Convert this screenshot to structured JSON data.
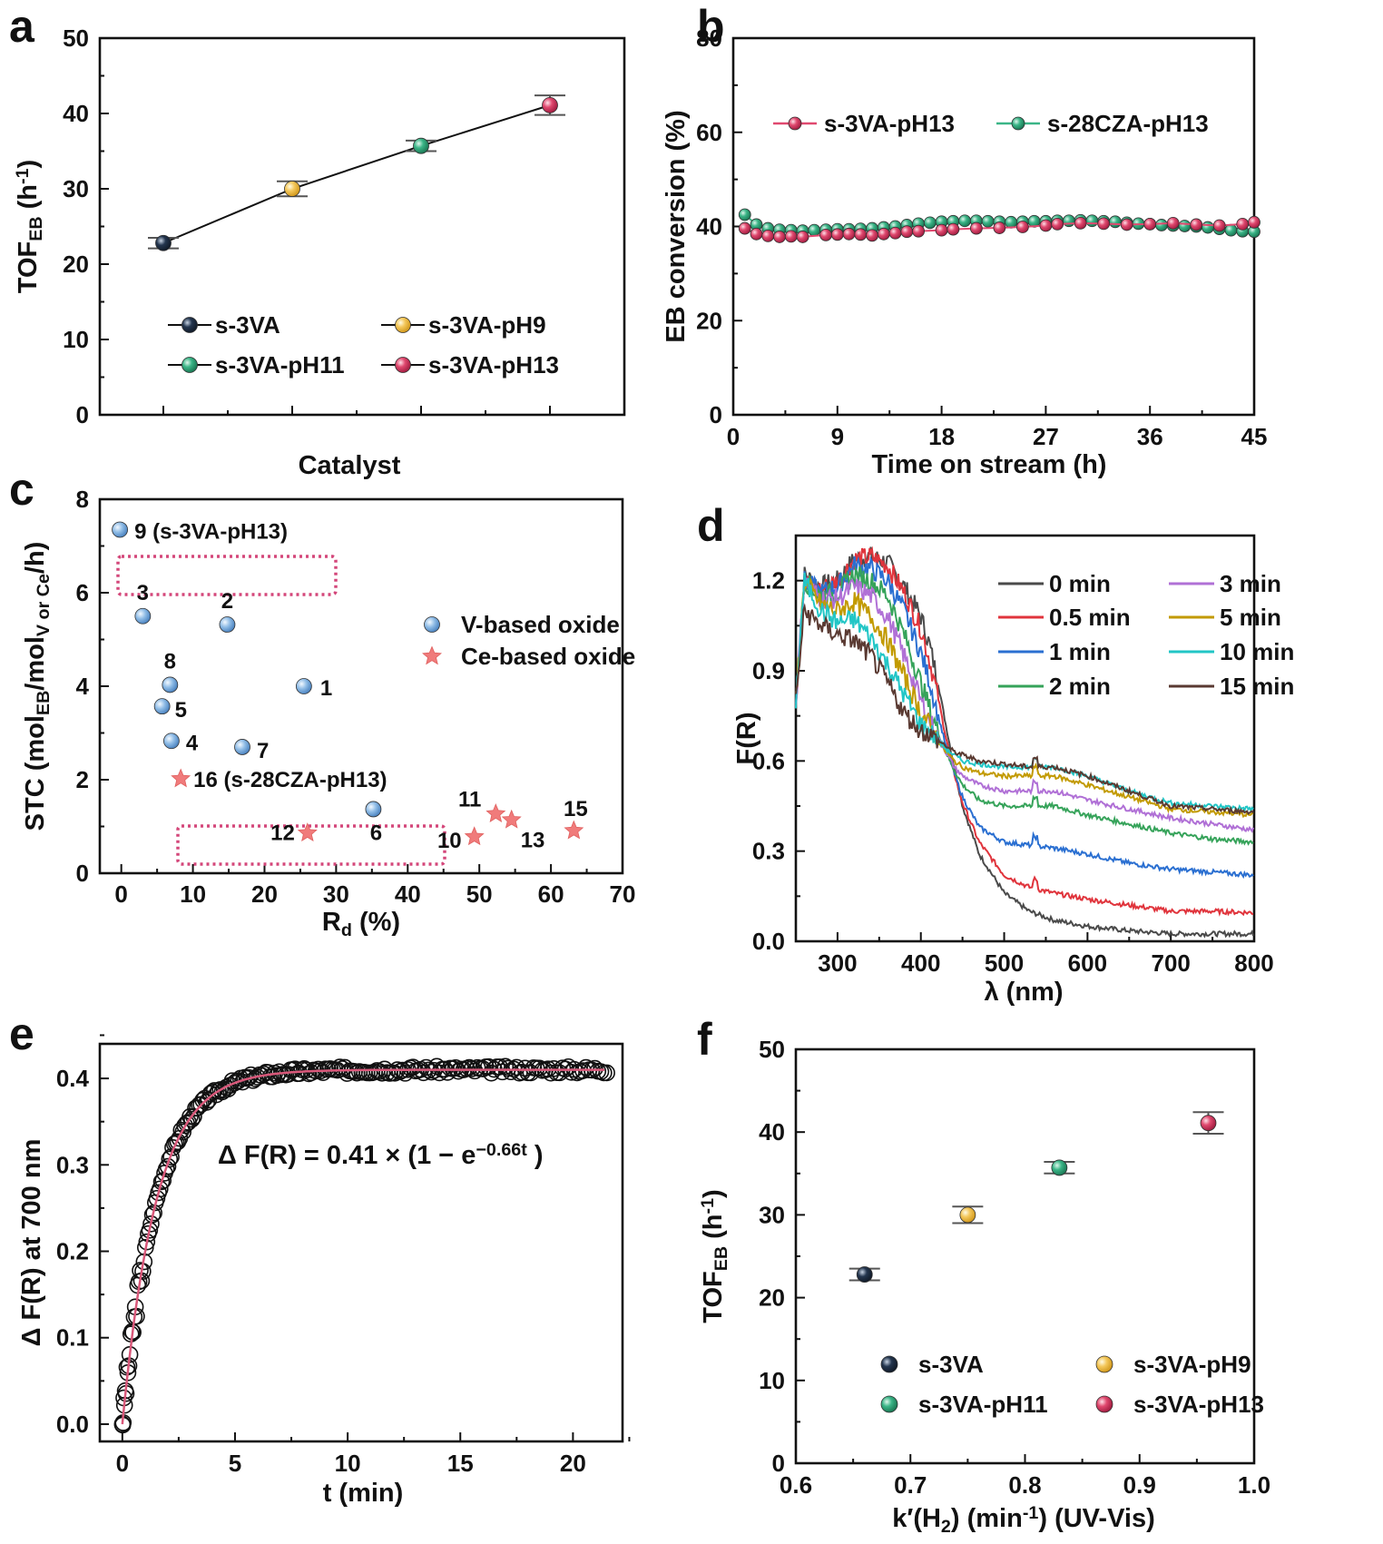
{
  "colors": {
    "s-3VA": "#24364f",
    "s-3VA-pH9": "#f4c85c",
    "s-3VA-pH11": "#3bb587",
    "s-3VA-pH13": "#e0496f",
    "v_based": "#8fbce6",
    "ce_based": "#f07b7b",
    "highlight_box": "#d4477a",
    "fit_line": "#d9587a"
  },
  "chart_data": [
    {
      "panel": "a",
      "type": "line",
      "xlabel": "Catalyst",
      "ylabel": "TOF",
      "ylabel_sub": "EB",
      "ylabel_unit": " (h",
      "ylabel_sup": "-1",
      "ylabel_close": ")",
      "ylim": [
        0,
        50
      ],
      "yticks": [
        0,
        10,
        20,
        30,
        40,
        50
      ],
      "categories": [
        "s-3VA",
        "s-3VA-pH9",
        "s-3VA-pH11",
        "s-3VA-pH13"
      ],
      "values": [
        22.8,
        30.0,
        35.7,
        41.1
      ],
      "errors": [
        0.7,
        1.0,
        0.7,
        1.3
      ],
      "legend": [
        "s-3VA",
        "s-3VA-pH9",
        "s-3VA-pH11",
        "s-3VA-pH13"
      ]
    },
    {
      "panel": "b",
      "type": "line",
      "xlabel": "Time on stream (h)",
      "ylabel": "EB conversion (%)",
      "xlim": [
        0,
        45
      ],
      "ylim": [
        0,
        80
      ],
      "xticks": [
        0,
        9,
        18,
        27,
        36,
        45
      ],
      "yticks": [
        0,
        20,
        40,
        60,
        80
      ],
      "series": [
        {
          "name": "s-3VA-pH13",
          "x": [
            1,
            2,
            3,
            4,
            5,
            6,
            8,
            9,
            10,
            11,
            12,
            13,
            14,
            15,
            16,
            18,
            19,
            21,
            23,
            25,
            27,
            28,
            30,
            32,
            34,
            36,
            38,
            40,
            42,
            44,
            45
          ],
          "y": [
            39.6,
            38.4,
            38.0,
            37.8,
            37.9,
            37.8,
            38.2,
            38.3,
            38.4,
            38.3,
            38.1,
            38.4,
            38.6,
            38.9,
            39.0,
            39.2,
            39.4,
            39.6,
            39.7,
            39.9,
            40.2,
            40.5,
            40.7,
            40.6,
            40.4,
            40.5,
            40.7,
            40.4,
            40.2,
            40.5,
            40.9
          ]
        },
        {
          "name": "s-28CZA-pH13",
          "x": [
            1,
            2,
            3,
            4,
            5,
            6,
            7,
            8,
            9,
            10,
            11,
            12,
            13,
            14,
            15,
            16,
            17,
            18,
            19,
            20,
            21,
            22,
            23,
            24,
            25,
            26,
            27,
            28,
            29,
            30,
            31,
            32,
            33,
            34,
            35,
            36,
            37,
            38,
            39,
            40,
            41,
            42,
            43,
            44,
            45
          ],
          "y": [
            42.5,
            40.4,
            39.6,
            39.3,
            39.2,
            39.1,
            39.2,
            39.3,
            39.4,
            39.4,
            39.5,
            39.6,
            39.8,
            40.0,
            40.3,
            40.6,
            40.8,
            41.0,
            41.1,
            41.2,
            41.2,
            41.1,
            41.0,
            40.9,
            41.0,
            41.1,
            41.1,
            41.2,
            41.2,
            41.3,
            41.2,
            41.1,
            41.0,
            40.8,
            40.6,
            40.5,
            40.3,
            40.2,
            40.1,
            40.0,
            39.8,
            39.5,
            39.2,
            39.0,
            38.9
          ]
        }
      ]
    },
    {
      "panel": "c",
      "type": "scatter",
      "xlabel": "R",
      "xlabel_sub": "d",
      "xlabel_unit": " (%)",
      "ylabel": "STC (mol",
      "ylabel_sub1": "EB",
      "ylabel_mid": "/mol",
      "ylabel_sub2": "V or Ce",
      "ylabel_end": "/h)",
      "xlim": [
        -3,
        70
      ],
      "ylim": [
        0,
        8
      ],
      "xticks": [
        0,
        10,
        20,
        30,
        40,
        50,
        60,
        70
      ],
      "yticks": [
        0,
        2,
        4,
        6,
        8
      ],
      "legend": [
        "V-based oxide",
        "Ce-based oxide"
      ],
      "v_points": [
        {
          "label": "1",
          "x": 25.5,
          "y": 4.0
        },
        {
          "label": "2",
          "x": 14.8,
          "y": 5.32
        },
        {
          "label": "3",
          "x": 3.0,
          "y": 5.5
        },
        {
          "label": "4",
          "x": 7.0,
          "y": 2.83
        },
        {
          "label": "5",
          "x": 5.7,
          "y": 3.57
        },
        {
          "label": "6",
          "x": 35.2,
          "y": 1.37
        },
        {
          "label": "7",
          "x": 16.9,
          "y": 2.7
        },
        {
          "label": "8",
          "x": 6.8,
          "y": 4.03
        },
        {
          "label": "9 (s-3VA-pH13)",
          "x": -0.2,
          "y": 7.35
        }
      ],
      "ce_points": [
        {
          "label": "10",
          "x": 49.3,
          "y": 0.78
        },
        {
          "label": "11",
          "x": 52.3,
          "y": 1.27
        },
        {
          "label": "12",
          "x": 26.0,
          "y": 0.86
        },
        {
          "label": "13",
          "x": 54.5,
          "y": 1.14
        },
        {
          "label": "15",
          "x": 63.2,
          "y": 0.91
        },
        {
          "label": "16 (s-28CZA-pH13)",
          "x": 8.3,
          "y": 2.02
        }
      ]
    },
    {
      "panel": "d",
      "type": "line",
      "xlabel": "λ (nm)",
      "ylabel": "F(R)",
      "xlim": [
        250,
        800
      ],
      "ylim": [
        0,
        1.35
      ],
      "xticks": [
        300,
        400,
        500,
        600,
        700,
        800
      ],
      "yticks": [
        0.0,
        0.3,
        0.6,
        0.9,
        1.2
      ],
      "series": [
        {
          "name": "0 min",
          "color": "#4a4a4a",
          "x": [
            250,
            260,
            280,
            300,
            320,
            340,
            360,
            380,
            400,
            410,
            420,
            430,
            440,
            450,
            470,
            500,
            530,
            560,
            600,
            650,
            700,
            750,
            800
          ],
          "y": [
            0.8,
            1.22,
            1.18,
            1.2,
            1.27,
            1.28,
            1.26,
            1.18,
            1.08,
            0.99,
            0.87,
            0.72,
            0.58,
            0.45,
            0.29,
            0.16,
            0.1,
            0.07,
            0.05,
            0.035,
            0.025,
            0.025,
            0.025
          ]
        },
        {
          "name": "0.5 min",
          "color": "#e0343c",
          "x": [
            250,
            260,
            280,
            300,
            320,
            340,
            360,
            380,
            400,
            410,
            420,
            430,
            440,
            450,
            470,
            500,
            530,
            560,
            600,
            650,
            700,
            750,
            800
          ],
          "y": [
            0.8,
            1.2,
            1.17,
            1.2,
            1.27,
            1.28,
            1.25,
            1.16,
            1.04,
            0.94,
            0.82,
            0.68,
            0.56,
            0.46,
            0.33,
            0.22,
            0.18,
            0.16,
            0.14,
            0.12,
            0.1,
            0.1,
            0.095
          ]
        },
        {
          "name": "1 min",
          "color": "#2a6fd1",
          "x": [
            250,
            260,
            280,
            300,
            320,
            340,
            360,
            380,
            400,
            410,
            420,
            430,
            440,
            450,
            470,
            500,
            530,
            560,
            600,
            650,
            700,
            750,
            800
          ],
          "y": [
            0.8,
            1.2,
            1.16,
            1.18,
            1.25,
            1.24,
            1.2,
            1.1,
            0.96,
            0.87,
            0.76,
            0.65,
            0.56,
            0.48,
            0.38,
            0.33,
            0.32,
            0.31,
            0.29,
            0.26,
            0.24,
            0.23,
            0.22
          ]
        },
        {
          "name": "2 min",
          "color": "#36a35a",
          "x": [
            250,
            260,
            280,
            300,
            320,
            340,
            360,
            380,
            400,
            410,
            420,
            430,
            440,
            450,
            470,
            500,
            530,
            560,
            600,
            650,
            700,
            750,
            800
          ],
          "y": [
            0.8,
            1.2,
            1.15,
            1.16,
            1.22,
            1.2,
            1.15,
            1.02,
            0.86,
            0.78,
            0.7,
            0.63,
            0.57,
            0.52,
            0.47,
            0.45,
            0.45,
            0.45,
            0.42,
            0.39,
            0.36,
            0.34,
            0.33
          ]
        },
        {
          "name": "3 min",
          "color": "#b070d6",
          "x": [
            250,
            260,
            280,
            300,
            320,
            340,
            360,
            380,
            400,
            410,
            420,
            430,
            440,
            450,
            470,
            500,
            530,
            560,
            600,
            650,
            700,
            750,
            800
          ],
          "y": [
            0.8,
            1.2,
            1.14,
            1.14,
            1.18,
            1.15,
            1.08,
            0.95,
            0.8,
            0.74,
            0.68,
            0.63,
            0.58,
            0.55,
            0.52,
            0.5,
            0.5,
            0.5,
            0.47,
            0.44,
            0.41,
            0.39,
            0.37
          ]
        },
        {
          "name": "5 min",
          "color": "#c29a00",
          "x": [
            250,
            260,
            280,
            300,
            320,
            340,
            360,
            380,
            400,
            410,
            420,
            430,
            440,
            450,
            470,
            500,
            530,
            560,
            600,
            650,
            700,
            750,
            800
          ],
          "y": [
            0.8,
            1.2,
            1.12,
            1.1,
            1.13,
            1.08,
            1.0,
            0.88,
            0.76,
            0.72,
            0.67,
            0.63,
            0.6,
            0.58,
            0.56,
            0.55,
            0.55,
            0.55,
            0.52,
            0.48,
            0.44,
            0.43,
            0.42
          ]
        },
        {
          "name": "10 min",
          "color": "#22c6c6",
          "x": [
            250,
            260,
            280,
            300,
            320,
            340,
            360,
            380,
            400,
            410,
            420,
            430,
            440,
            450,
            470,
            500,
            530,
            560,
            600,
            650,
            700,
            750,
            800
          ],
          "y": [
            0.8,
            1.2,
            1.1,
            1.06,
            1.07,
            1.01,
            0.92,
            0.82,
            0.72,
            0.7,
            0.67,
            0.64,
            0.62,
            0.6,
            0.59,
            0.58,
            0.58,
            0.58,
            0.55,
            0.5,
            0.46,
            0.45,
            0.44
          ]
        },
        {
          "name": "15 min",
          "color": "#5a3a32",
          "x": [
            250,
            260,
            280,
            300,
            320,
            340,
            360,
            380,
            400,
            410,
            420,
            430,
            440,
            450,
            470,
            500,
            530,
            560,
            600,
            650,
            700,
            750,
            800
          ],
          "y": [
            0.8,
            1.1,
            1.05,
            1.02,
            1.0,
            0.95,
            0.86,
            0.76,
            0.7,
            0.69,
            0.67,
            0.65,
            0.63,
            0.62,
            0.6,
            0.59,
            0.58,
            0.58,
            0.55,
            0.5,
            0.45,
            0.44,
            0.43
          ]
        }
      ]
    },
    {
      "panel": "e",
      "type": "scatter",
      "xlabel": "t (min)",
      "ylabel": "Δ F(R) at 700 nm",
      "xlim": [
        -1,
        22.2
      ],
      "ylim": [
        -0.02,
        0.44
      ],
      "xticks": [
        0,
        5,
        10,
        15,
        20
      ],
      "yticks": [
        0.0,
        0.1,
        0.2,
        0.3,
        0.4
      ],
      "yticklabels": [
        "0.0",
        "0.1",
        "0.2",
        "0.3",
        "0.4"
      ],
      "fit": {
        "a": 0.41,
        "k": 0.66
      },
      "equation": {
        "pre": "Δ F(R) = 0.41 × (1 − e",
        "sup": "−0.66t",
        "post": " )"
      },
      "t_max": 21.5,
      "n_points": 220
    },
    {
      "panel": "f",
      "type": "scatter",
      "xlabel": "k′(H",
      "xlabel_sub": "2",
      "xlabel_mid": ") (min",
      "xlabel_sup": "-1",
      "xlabel_end": ") (UV-Vis)",
      "ylabel": "TOF",
      "ylabel_sub": "EB",
      "ylabel_unit": " (h",
      "ylabel_sup": "-1",
      "ylabel_close": ")",
      "xlim": [
        0.6,
        1.0
      ],
      "ylim": [
        0,
        50
      ],
      "xticks": [
        0.6,
        0.7,
        0.8,
        0.9,
        1.0
      ],
      "xticklabels": [
        "0.6",
        "0.7",
        "0.8",
        "0.9",
        "1.0"
      ],
      "yticks": [
        0,
        10,
        20,
        30,
        40,
        50
      ],
      "points": [
        {
          "name": "s-3VA",
          "x": 0.66,
          "y": 22.8,
          "err": 0.7
        },
        {
          "name": "s-3VA-pH9",
          "x": 0.75,
          "y": 30.0,
          "err": 1.0
        },
        {
          "name": "s-3VA-pH11",
          "x": 0.83,
          "y": 35.7,
          "err": 0.7
        },
        {
          "name": "s-3VA-pH13",
          "x": 0.96,
          "y": 41.1,
          "err": 1.3
        }
      ],
      "legend": [
        "s-3VA",
        "s-3VA-pH9",
        "s-3VA-pH11",
        "s-3VA-pH13"
      ]
    }
  ],
  "panel_letters": [
    "a",
    "b",
    "c",
    "d",
    "e",
    "f"
  ]
}
